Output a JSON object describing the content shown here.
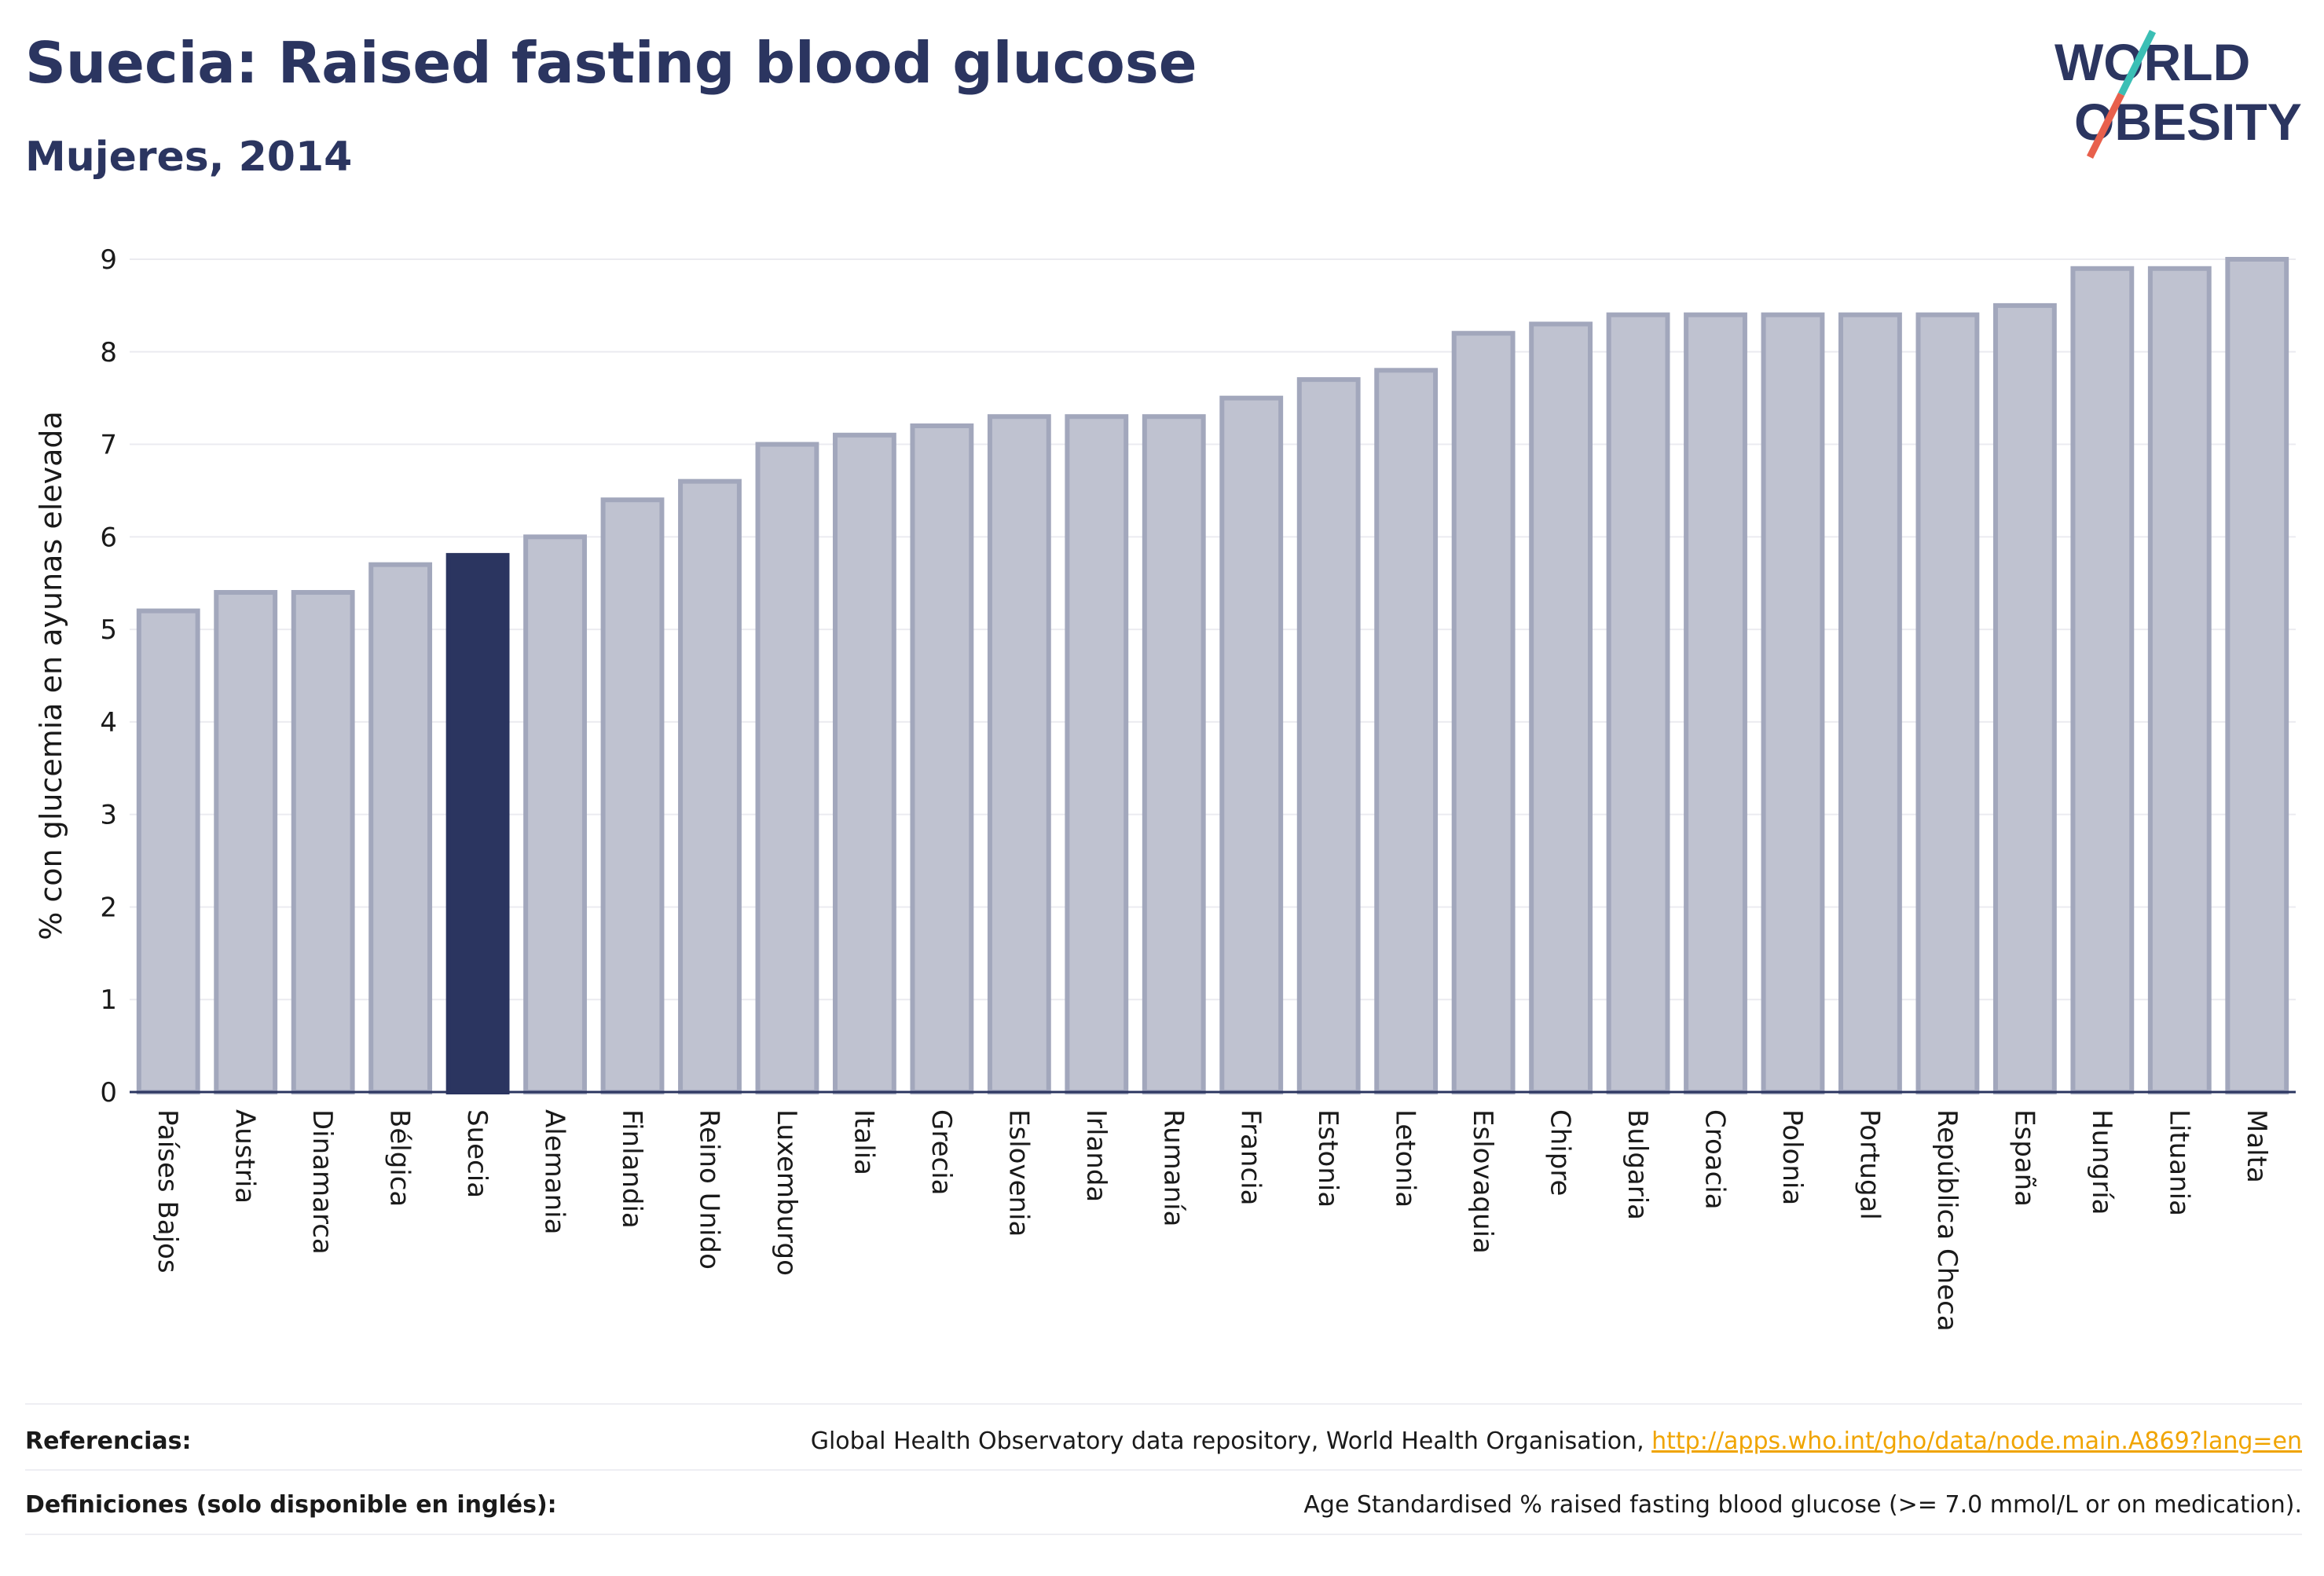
{
  "header": {
    "title": "Suecia: Raised fasting blood glucose",
    "subtitle": "Mujeres, 2014"
  },
  "logo": {
    "line1": "WORLD",
    "line2": "OBESITY",
    "accent_colors": [
      "#3bbfb5",
      "#e8604c"
    ]
  },
  "chart_data": {
    "type": "bar",
    "ylabel": "% con glucemia en ayunas elevada",
    "ylim": [
      0,
      9
    ],
    "yticks": [
      0,
      1,
      2,
      3,
      4,
      5,
      6,
      7,
      8,
      9
    ],
    "grid": true,
    "categories": [
      "Países Bajos",
      "Austria",
      "Dinamarca",
      "Bélgica",
      "Suecia",
      "Alemania",
      "Finlandia",
      "Reino Unido",
      "Luxemburgo",
      "Italia",
      "Grecia",
      "Eslovenia",
      "Irlanda",
      "Rumanía",
      "Francia",
      "Estonia",
      "Letonia",
      "Eslovaquia",
      "Chipre",
      "Bulgaria",
      "Croacia",
      "Polonia",
      "Portugal",
      "República Checa",
      "España",
      "Hungría",
      "Lituania",
      "Malta"
    ],
    "values": [
      5.2,
      5.4,
      5.4,
      5.7,
      5.8,
      6.0,
      6.4,
      6.6,
      7.0,
      7.1,
      7.2,
      7.3,
      7.3,
      7.3,
      7.5,
      7.7,
      7.8,
      8.2,
      8.3,
      8.4,
      8.4,
      8.4,
      8.4,
      8.4,
      8.5,
      8.9,
      8.9,
      9.0
    ],
    "highlight": "Suecia",
    "colors": {
      "bar": "#bfc2d0",
      "bar_border": "#a2a7bc",
      "highlight": "#2b3560",
      "grid": "#ebebf0",
      "axis": "#2b3560"
    }
  },
  "footer": {
    "references_label": "Referencias:",
    "references_text": "Global Health Observatory data repository, World Health Organisation, ",
    "references_link": "http://apps.who.int/gho/data/node.main.A869?lang=en",
    "definitions_label": "Definiciones (solo disponible en inglés):",
    "definitions_text": "Age Standardised % raised fasting blood glucose (>= 7.0 mmol/L or on medication)."
  }
}
